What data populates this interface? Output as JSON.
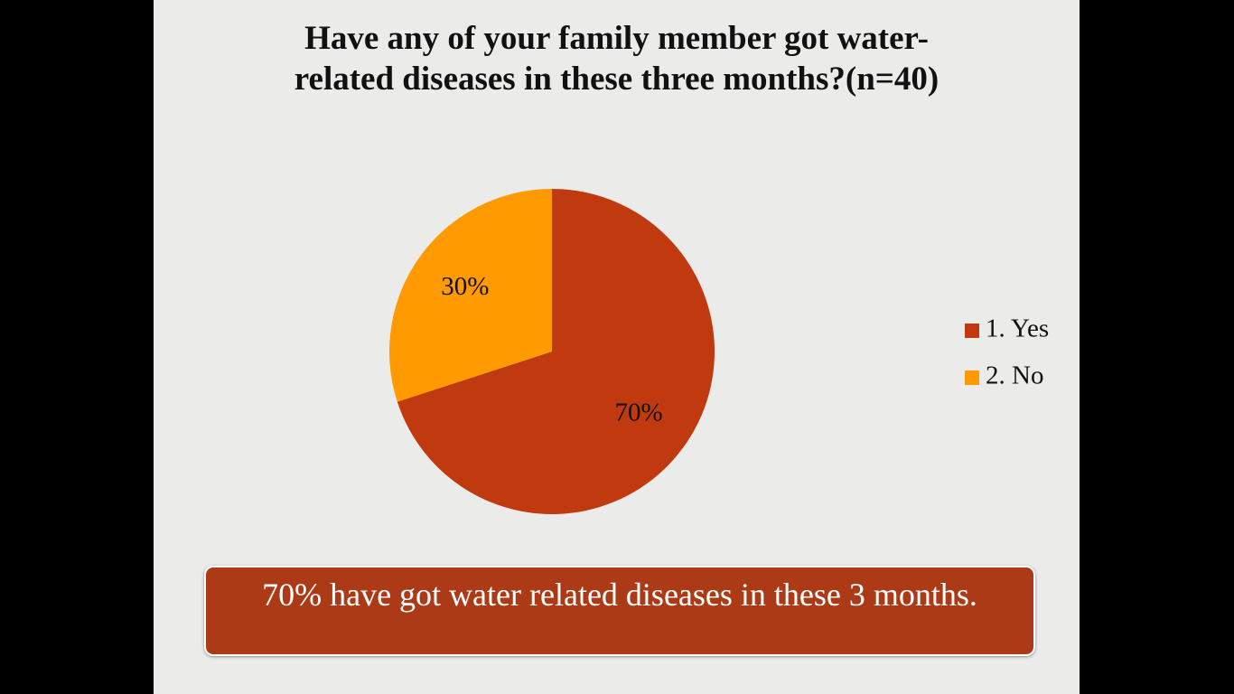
{
  "chart_data": {
    "type": "pie",
    "title": "Have any of your family member got water-related diseases in these three months?(n=40)",
    "categories": [
      "1. Yes",
      "2. No"
    ],
    "values": [
      70,
      30
    ],
    "value_labels": [
      "70%",
      "30%"
    ],
    "colors": [
      "#c0390f",
      "#ff9a00"
    ],
    "legend": "right",
    "annotation": "70% have got water related diseases in these 3 months."
  }
}
